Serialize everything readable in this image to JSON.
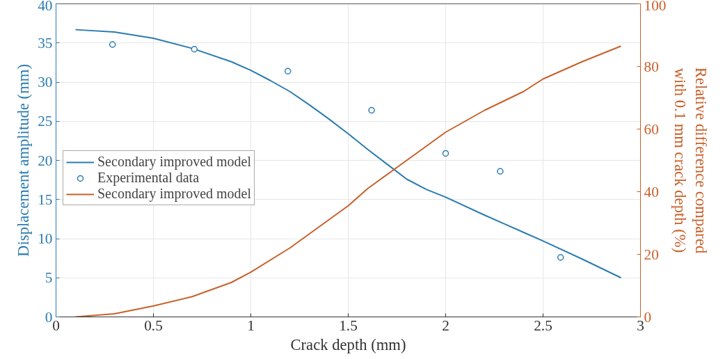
{
  "chart_data": {
    "type": "line",
    "xlabel": "Crack depth (mm)",
    "ylabel": "Displacement amplitude (mm)",
    "y2label": "Relative difference compared\nwith 0.1 mm crack depth (%)",
    "xlim": [
      0,
      3
    ],
    "xticks": [
      0,
      0.5,
      1,
      1.5,
      2,
      2.5,
      3
    ],
    "ylim": [
      0,
      40
    ],
    "yticks": [
      0,
      5,
      10,
      15,
      20,
      25,
      30,
      35,
      40
    ],
    "y2lim": [
      0,
      100
    ],
    "y2ticks": [
      0,
      20,
      40,
      60,
      80,
      100
    ],
    "grid": true,
    "legend": "left",
    "series": [
      {
        "name": "Secondary improved model",
        "color": "#2b7bb0",
        "x": [
          0.1,
          0.3,
          0.5,
          0.7,
          0.9,
          1.0,
          1.1,
          1.2,
          1.3,
          1.4,
          1.5,
          1.6,
          1.7,
          1.8,
          1.9,
          2.0,
          2.2,
          2.3,
          2.4,
          2.5,
          2.7,
          2.9
        ],
        "values": [
          36.7,
          36.4,
          35.6,
          34.3,
          32.6,
          31.5,
          30.2,
          28.8,
          27.1,
          25.3,
          23.4,
          21.4,
          19.5,
          17.6,
          16.3,
          15.3,
          13.0,
          11.9,
          10.8,
          9.7,
          7.4,
          5.0
        ]
      },
      {
        "name": "Experimental data",
        "type": "scatter",
        "marker": "circle",
        "color": "#2b7bb0",
        "x": [
          0.29,
          0.71,
          1.19,
          1.62,
          2.0,
          2.28,
          2.59
        ],
        "values": [
          34.8,
          34.2,
          31.4,
          26.4,
          20.9,
          18.6,
          7.6
        ]
      },
      {
        "name": "Secondary improved model",
        "axis": "y2",
        "color": "#c8602a",
        "x": [
          0.1,
          0.3,
          0.5,
          0.7,
          0.9,
          1.0,
          1.2,
          1.4,
          1.5,
          1.6,
          1.8,
          2.0,
          2.2,
          2.4,
          2.5,
          2.7,
          2.9
        ],
        "values": [
          0,
          1,
          3.5,
          6.5,
          11,
          14.3,
          22,
          31,
          35.5,
          41,
          50,
          59,
          66,
          72,
          76,
          81.5,
          86.5
        ]
      }
    ]
  }
}
